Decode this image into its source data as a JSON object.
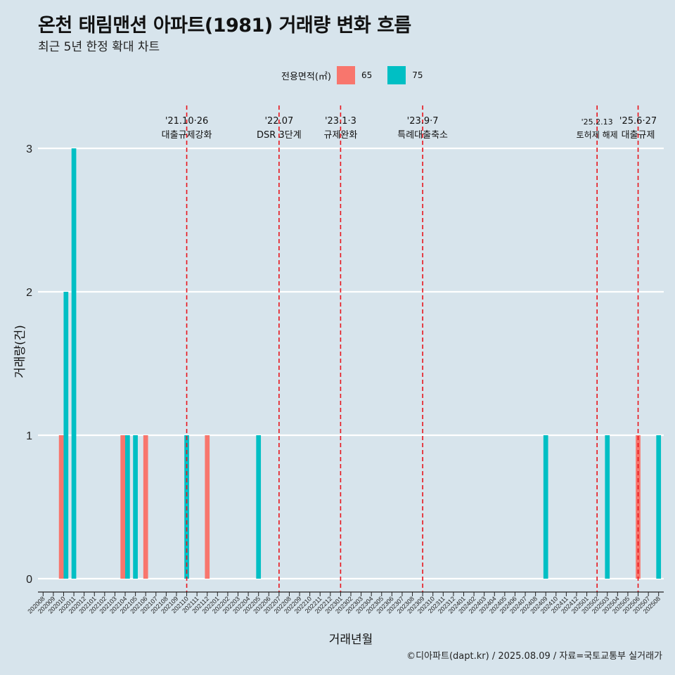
{
  "title": "온천 태림맨션 아파트(1981) 거래량 변화 흐름",
  "subtitle": "최근 5년 한정 확대 차트",
  "caption": "©디아파트(dapt.kr) / 2025.08.09 / 자료=국토교통부 실거래가",
  "legend": {
    "title": "전용면적(㎡)",
    "items": [
      {
        "label": "65",
        "color": "#f8766d"
      },
      {
        "label": "75",
        "color": "#00bfc4"
      }
    ]
  },
  "chart_data": {
    "type": "bar",
    "xlabel": "거래년월",
    "ylabel": "거래량(건)",
    "ylim": [
      0,
      3
    ],
    "yticks": [
      0,
      1,
      2,
      3
    ],
    "grid": true,
    "legend_position": "top",
    "categories": [
      "202008",
      "202009",
      "202010",
      "202011",
      "202012",
      "202101",
      "202102",
      "202103",
      "202104",
      "202105",
      "202106",
      "202107",
      "202108",
      "202109",
      "202110",
      "202111",
      "202112",
      "202201",
      "202202",
      "202203",
      "202204",
      "202205",
      "202206",
      "202207",
      "202208",
      "202209",
      "202210",
      "202211",
      "202212",
      "202301",
      "202302",
      "202303",
      "202304",
      "202305",
      "202306",
      "202307",
      "202308",
      "202309",
      "202310",
      "202311",
      "202312",
      "202401",
      "202402",
      "202403",
      "202404",
      "202405",
      "202406",
      "202407",
      "202408",
      "202409",
      "202410",
      "202411",
      "202412",
      "202501",
      "202502",
      "202503",
      "202504",
      "202505",
      "202506",
      "202507",
      "202508"
    ],
    "series": [
      {
        "name": "65",
        "color": "#f8766d",
        "values": [
          0,
          0,
          1,
          0,
          0,
          0,
          0,
          0,
          1,
          0,
          1,
          0,
          0,
          0,
          0,
          0,
          1,
          0,
          0,
          0,
          0,
          0,
          0,
          0,
          0,
          0,
          0,
          0,
          0,
          0,
          0,
          0,
          0,
          0,
          0,
          0,
          0,
          0,
          0,
          0,
          0,
          0,
          0,
          0,
          0,
          0,
          0,
          0,
          0,
          0,
          0,
          0,
          0,
          0,
          0,
          0,
          0,
          0,
          1,
          0,
          0
        ]
      },
      {
        "name": "75",
        "color": "#00bfc4",
        "values": [
          0,
          0,
          2,
          3,
          0,
          0,
          0,
          0,
          1,
          1,
          0,
          0,
          0,
          0,
          1,
          0,
          0,
          0,
          0,
          0,
          0,
          1,
          0,
          0,
          0,
          0,
          0,
          0,
          0,
          0,
          0,
          0,
          0,
          0,
          0,
          0,
          0,
          0,
          0,
          0,
          0,
          0,
          0,
          0,
          0,
          0,
          0,
          0,
          0,
          1,
          0,
          0,
          0,
          0,
          0,
          1,
          0,
          0,
          0,
          0,
          1
        ]
      }
    ],
    "events": [
      {
        "date_label": "'21.10·26",
        "label": "대출규제강화",
        "x": "202110"
      },
      {
        "date_label": "'22.07",
        "label": "DSR 3단계",
        "x": "202207"
      },
      {
        "date_label": "'23.1·3",
        "label": "규제완화",
        "x": "202301"
      },
      {
        "date_label": "'23.9·7",
        "label": "특례대출축소",
        "x": "202309"
      },
      {
        "date_label": "'25.2.13",
        "label": "토허제 해제",
        "x": "202502"
      },
      {
        "date_label": "'25.6·27",
        "label": "대출규제",
        "x": "202506"
      }
    ]
  }
}
